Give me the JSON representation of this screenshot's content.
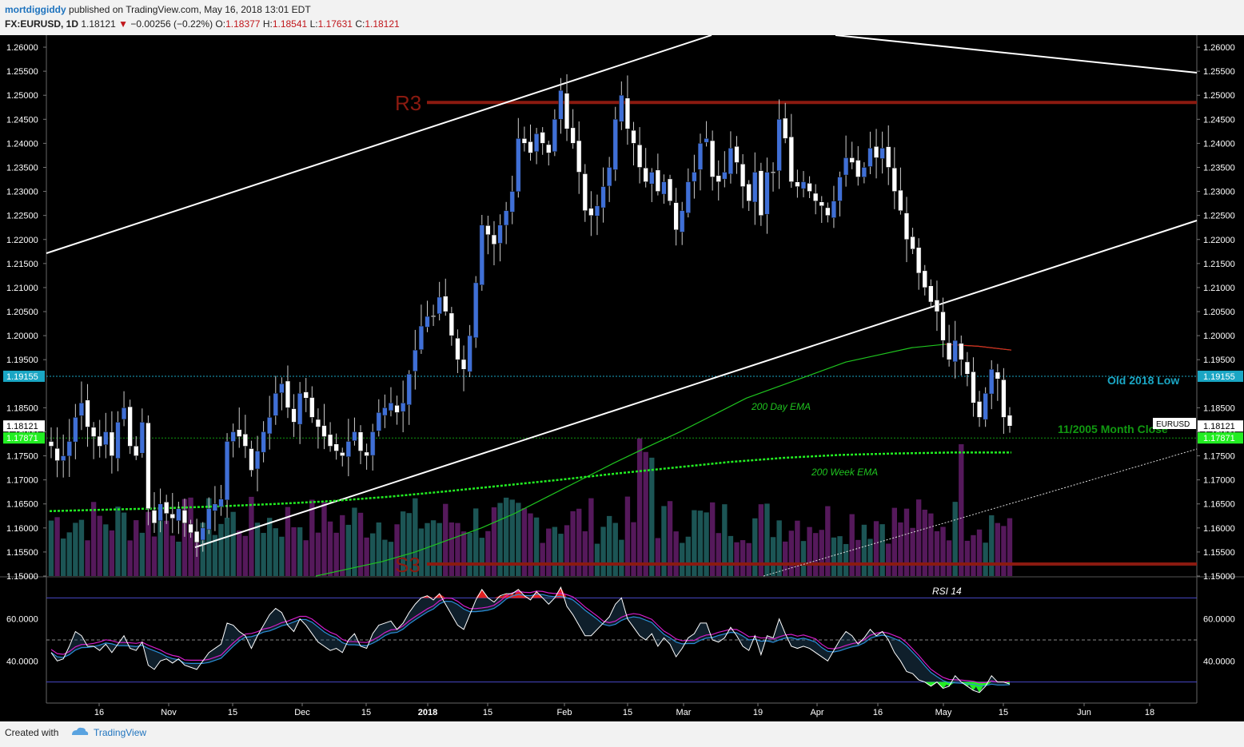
{
  "header": {
    "author": "mortdiggiddy",
    "published": "published on TradingView.com, May 16, 2018 13:01 EDT",
    "symbol": "FX:EURUSD, 1D",
    "last": "1.18121",
    "change": "−0.00256 (−0.22%)",
    "open_label": "O:",
    "open": "1.18377",
    "high_label": "H:",
    "high": "1.18541",
    "low_label": "L:",
    "low": "1.17631",
    "close_label": "C:",
    "close": "1.18121"
  },
  "footer": {
    "created_with": "Created with",
    "brand": "TradingView"
  },
  "colors": {
    "background": "#000000",
    "up_candle": "#3f6fd6",
    "down_candle": "#ffffff",
    "ema200d": "#1fc41f",
    "ema200w": "#22ee22",
    "pivot": "#8b1a10",
    "rsi": "#ffffff",
    "rsi_signal": "#d21ec8",
    "rsi_ma": "#2a8fd8",
    "old_low": "#1aa6c4",
    "month_close": "#119911"
  },
  "chart_data": [
    {
      "type": "candlestick",
      "symbol": "EURUSD",
      "ylim": [
        1.15,
        1.2625
      ],
      "yticks": [
        "1.26000",
        "1.25500",
        "1.25000",
        "1.24500",
        "1.24000",
        "1.23500",
        "1.23000",
        "1.22500",
        "1.22000",
        "1.21500",
        "1.21000",
        "1.20500",
        "1.20000",
        "1.19500",
        "1.18500",
        "1.18000",
        "1.17500",
        "1.17000",
        "1.16500",
        "1.16000",
        "1.15500",
        "1.15000"
      ],
      "xticks": [
        "16",
        "Nov",
        "15",
        "Dec",
        "15",
        "2018",
        "15",
        "Feb",
        "15",
        "Mar",
        "19",
        "Apr",
        "16",
        "May",
        "15",
        "Jun",
        "18"
      ],
      "series": [
        {
          "name": "EURUSD",
          "start_close": 1.1775,
          "closes": [
            1.177,
            1.174,
            1.175,
            1.178,
            1.183,
            1.186,
            1.181,
            1.179,
            1.177,
            1.18,
            1.175,
            1.182,
            1.185,
            1.177,
            1.175,
            1.182,
            1.164,
            1.161,
            1.165,
            1.163,
            1.162,
            1.164,
            1.161,
            1.159,
            1.157,
            1.16,
            1.164,
            1.165,
            1.166,
            1.178,
            1.18,
            1.179,
            1.177,
            1.172,
            1.176,
            1.18,
            1.183,
            1.188,
            1.19,
            1.185,
            1.182,
            1.188,
            1.187,
            1.183,
            1.181,
            1.179,
            1.177,
            1.176,
            1.175,
            1.178,
            1.18,
            1.176,
            1.175,
            1.18,
            1.184,
            1.185,
            1.186,
            1.184,
            1.186,
            1.192,
            1.197,
            1.202,
            1.204,
            1.204,
            1.208,
            1.205,
            1.2,
            1.195,
            1.193,
            1.2,
            1.211,
            1.223,
            1.221,
            1.219,
            1.223,
            1.226,
            1.23,
            1.241,
            1.24,
            1.238,
            1.242,
            1.24,
            1.238,
            1.245,
            1.251,
            1.243,
            1.24,
            1.234,
            1.226,
            1.225,
            1.227,
            1.231,
            1.235,
            1.245,
            1.25,
            1.243,
            1.24,
            1.235,
            1.232,
            1.234,
            1.23,
            1.232,
            1.228,
            1.222,
            1.226,
            1.232,
            1.234,
            1.24,
            1.241,
            1.233,
            1.232,
            1.234,
            1.239,
            1.236,
            1.231,
            1.228,
            1.234,
            1.225,
            1.234,
            1.234,
            1.245,
            1.241,
            1.232,
            1.231,
            1.232,
            1.23,
            1.228,
            1.227,
            1.225,
            1.228,
            1.233,
            1.237,
            1.236,
            1.233,
            1.235,
            1.239,
            1.237,
            1.239,
            1.235,
            1.23,
            1.226,
            1.22,
            1.218,
            1.213,
            1.21,
            1.207,
            1.205,
            1.199,
            1.195,
            1.199,
            1.195,
            1.192,
            1.186,
            1.183,
            1.188,
            1.193,
            1.191,
            1.183,
            1.1812
          ]
        },
        {
          "name": "200 Day EMA",
          "values": [
            1.15,
            1.1515,
            1.153,
            1.155,
            1.1575,
            1.16,
            1.163,
            1.1665,
            1.17,
            1.1735,
            1.1768,
            1.18,
            1.1835,
            1.187,
            1.1895,
            1.192,
            1.1945,
            1.196,
            1.1975,
            1.1982,
            1.1978,
            1.197
          ]
        },
        {
          "name": "200 Week EMA",
          "values": [
            1.1635,
            1.1638,
            1.1641,
            1.1645,
            1.165,
            1.1656,
            1.1665,
            1.1676,
            1.1688,
            1.17,
            1.1713,
            1.1725,
            1.1737,
            1.1746,
            1.1752,
            1.1755,
            1.1757,
            1.1757
          ]
        }
      ],
      "levels": [
        {
          "name": "R3",
          "value": 1.2485
        },
        {
          "name": "S3",
          "value": 1.1525
        },
        {
          "name": "Old 2018 Low",
          "value": 1.19155
        },
        {
          "name": "11/2005 Month Close",
          "value": 1.17871
        }
      ],
      "price_labels": [
        {
          "text": "1.19155",
          "value": 1.19155,
          "bg": "#1aa6c4"
        },
        {
          "text": "1.18121",
          "value": 1.18121,
          "bg": "#ffffff"
        },
        {
          "text": "1.17871",
          "value": 1.17871,
          "bg": "#22ee22"
        }
      ],
      "annotations": [
        "200 Day EMA",
        "200 Week EMA",
        "Old 2018 Low",
        "11/2005 Month Close",
        "EURUSD"
      ]
    },
    {
      "type": "line",
      "title": "RSI 14",
      "ylim": [
        20,
        80
      ],
      "yticks": [
        "60.0000",
        "40.0000"
      ],
      "bands": [
        70,
        50,
        30
      ],
      "values": [
        44,
        40,
        41,
        47,
        54,
        52,
        47,
        47,
        45,
        48,
        44,
        48,
        52,
        46,
        45,
        49,
        38,
        36,
        40,
        41,
        39,
        41,
        38,
        37,
        36,
        40,
        44,
        46,
        48,
        58,
        57,
        54,
        52,
        46,
        52,
        57,
        62,
        65,
        63,
        57,
        54,
        60,
        57,
        53,
        49,
        47,
        45,
        46,
        44,
        50,
        53,
        47,
        46,
        53,
        57,
        58,
        59,
        55,
        58,
        63,
        67,
        70,
        71,
        69,
        72,
        67,
        62,
        57,
        55,
        62,
        69,
        74,
        70,
        68,
        71,
        72,
        72,
        74,
        71,
        69,
        73,
        70,
        67,
        70,
        75,
        66,
        62,
        57,
        52,
        52,
        55,
        58,
        61,
        67,
        70,
        60,
        56,
        52,
        50,
        53,
        47,
        51,
        48,
        42,
        46,
        51,
        53,
        58,
        58,
        50,
        49,
        51,
        56,
        52,
        47,
        45,
        52,
        43,
        52,
        51,
        60,
        53,
        47,
        46,
        47,
        46,
        44,
        42,
        40,
        45,
        50,
        54,
        52,
        48,
        51,
        55,
        52,
        54,
        50,
        44,
        40,
        35,
        34,
        31,
        30,
        28,
        30,
        27,
        28,
        33,
        30,
        28,
        26,
        25,
        28,
        33,
        30,
        30,
        29
      ]
    }
  ]
}
